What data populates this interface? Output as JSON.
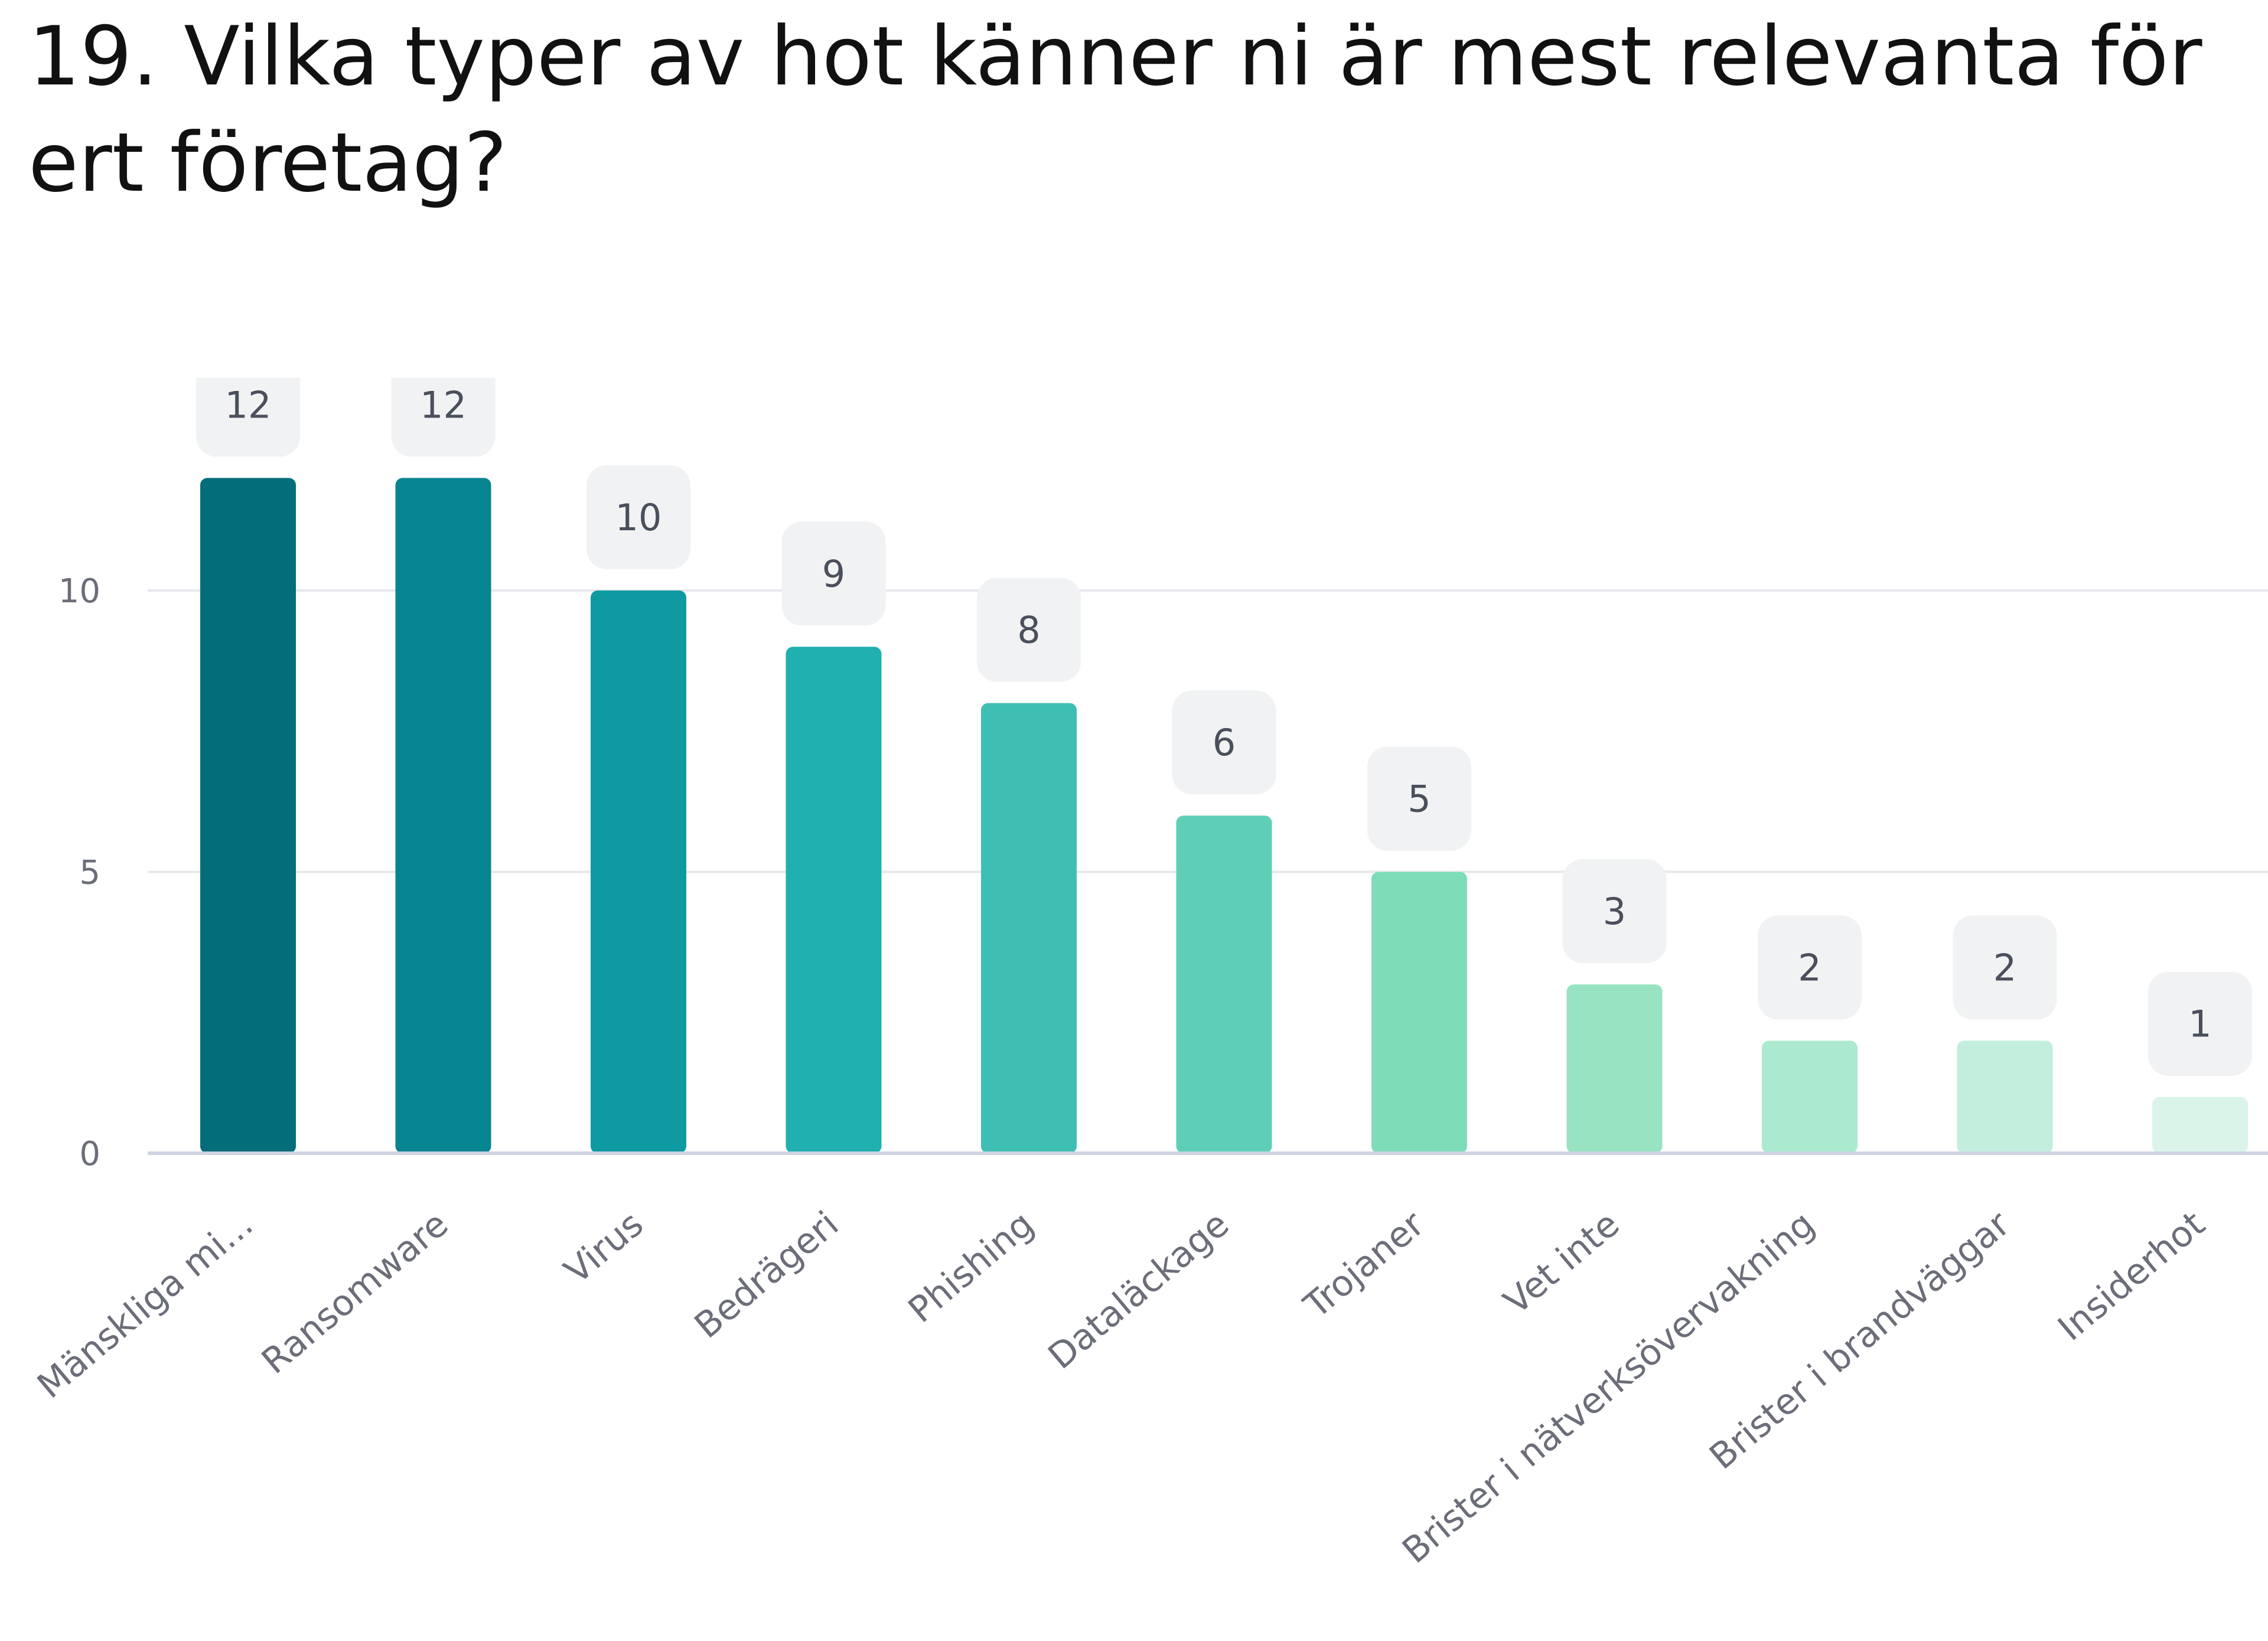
{
  "title": "19. Vilka typer av hot känner ni är mest relevanta för ert företag?",
  "chart_data": {
    "type": "bar",
    "categories": [
      "Mänskliga mi...",
      "Ransomware",
      "Virus",
      "Bedrägeri",
      "Phishing",
      "Dataläckage",
      "Trojaner",
      "Vet inte",
      "Brister i nätverksövervakning",
      "Brister i brandväggar",
      "Insiderhot"
    ],
    "values": [
      12,
      12,
      10,
      9,
      8,
      6,
      5,
      3,
      2,
      2,
      1
    ],
    "ylim": [
      0,
      12
    ],
    "yticks": [
      0,
      5,
      10
    ],
    "grid": true,
    "legend": "none",
    "data_labels": true,
    "colors": [
      "#036e7a",
      "#068590",
      "#0f9aa1",
      "#20b0b0",
      "#3fbfb3",
      "#5ecfb6",
      "#7edcb9",
      "#98e3c1",
      "#acead0",
      "#c3eedd",
      "#daf4ea"
    ],
    "label_box_color": "#f1f2f3",
    "axis_color": "#cfd3e2",
    "grid_color": "#e6e8ec"
  }
}
